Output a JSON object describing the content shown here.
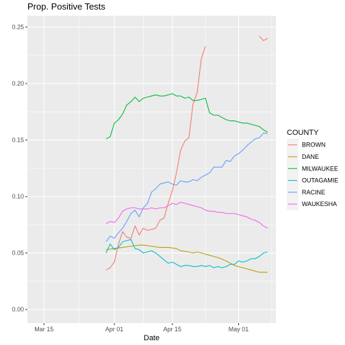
{
  "chart_data": {
    "type": "line",
    "title": "Prop. Positive Tests",
    "xlabel": "Date",
    "ylabel": "",
    "x_axis": {
      "type": "date",
      "range": [
        "2020-03-11",
        "2020-05-10"
      ],
      "ticks": [
        {
          "date": "2020-03-15",
          "label": "Mar 15"
        },
        {
          "date": "2020-04-01",
          "label": "Apr 01"
        },
        {
          "date": "2020-04-15",
          "label": "Apr 15"
        },
        {
          "date": "2020-05-01",
          "label": "May 01"
        }
      ]
    },
    "y_axis": {
      "range": [
        -0.012,
        0.26
      ],
      "ticks": [
        {
          "value": 0.0,
          "label": "0.00"
        },
        {
          "value": 0.05,
          "label": "0.05"
        },
        {
          "value": 0.1,
          "label": "0.10"
        },
        {
          "value": 0.15,
          "label": "0.15"
        },
        {
          "value": 0.2,
          "label": "0.20"
        },
        {
          "value": 0.25,
          "label": "0.25"
        }
      ]
    },
    "grid": true,
    "legend": {
      "title": "COUNTY",
      "position": "right"
    },
    "series": [
      {
        "name": "BROWN",
        "color": "#F8766D",
        "points": [
          [
            "2020-03-30",
            0.035
          ],
          [
            "2020-03-31",
            0.037
          ],
          [
            "2020-04-01",
            0.042
          ],
          [
            "2020-04-02",
            0.058
          ],
          [
            "2020-04-03",
            0.069
          ],
          [
            "2020-04-04",
            0.064
          ],
          [
            "2020-04-05",
            0.063
          ],
          [
            "2020-04-06",
            0.074
          ],
          [
            "2020-04-07",
            0.066
          ],
          [
            "2020-04-08",
            0.072
          ],
          [
            "2020-04-09",
            0.07
          ],
          [
            "2020-04-10",
            0.071
          ],
          [
            "2020-04-11",
            0.072
          ],
          [
            "2020-04-12",
            0.079
          ],
          [
            "2020-04-13",
            0.081
          ],
          [
            "2020-04-14",
            0.094
          ],
          [
            "2020-04-15",
            0.105
          ],
          [
            "2020-04-16",
            0.121
          ],
          [
            "2020-04-17",
            0.141
          ],
          [
            "2020-04-18",
            0.149
          ],
          [
            "2020-04-19",
            0.152
          ],
          [
            "2020-04-20",
            0.182
          ],
          [
            "2020-04-21",
            0.192
          ],
          [
            "2020-04-22",
            0.222
          ],
          [
            "2020-04-23",
            0.233
          ],
          null,
          [
            "2020-05-06",
            0.242
          ],
          [
            "2020-05-07",
            0.238
          ],
          [
            "2020-05-08",
            0.24
          ]
        ]
      },
      {
        "name": "DANE",
        "color": "#B79F00",
        "points": [
          [
            "2020-03-30",
            0.053
          ],
          [
            "2020-04-01",
            0.054
          ],
          [
            "2020-04-03",
            0.055
          ],
          [
            "2020-04-05",
            0.056
          ],
          [
            "2020-04-07",
            0.057
          ],
          [
            "2020-04-08",
            0.057
          ],
          [
            "2020-04-10",
            0.056
          ],
          [
            "2020-04-12",
            0.055
          ],
          [
            "2020-04-14",
            0.055
          ],
          [
            "2020-04-16",
            0.054
          ],
          [
            "2020-04-17",
            0.052
          ],
          [
            "2020-04-19",
            0.051
          ],
          [
            "2020-04-20",
            0.05
          ],
          [
            "2020-04-21",
            0.051
          ],
          [
            "2020-04-22",
            0.05
          ],
          [
            "2020-04-24",
            0.048
          ],
          [
            "2020-04-26",
            0.046
          ],
          [
            "2020-04-28",
            0.043
          ],
          [
            "2020-04-30",
            0.039
          ],
          [
            "2020-05-02",
            0.037
          ],
          [
            "2020-05-04",
            0.035
          ],
          [
            "2020-05-06",
            0.033
          ],
          [
            "2020-05-08",
            0.033
          ]
        ]
      },
      {
        "name": "MILWAUKEE",
        "color": "#00BA38",
        "points": [
          [
            "2020-03-30",
            0.151
          ],
          [
            "2020-03-31",
            0.153
          ],
          [
            "2020-04-01",
            0.165
          ],
          [
            "2020-04-02",
            0.168
          ],
          [
            "2020-04-03",
            0.173
          ],
          [
            "2020-04-04",
            0.181
          ],
          [
            "2020-04-05",
            0.184
          ],
          [
            "2020-04-06",
            0.188
          ],
          [
            "2020-04-07",
            0.184
          ],
          [
            "2020-04-08",
            0.187
          ],
          [
            "2020-04-09",
            0.188
          ],
          [
            "2020-04-10",
            0.189
          ],
          [
            "2020-04-11",
            0.19
          ],
          [
            "2020-04-12",
            0.189
          ],
          [
            "2020-04-13",
            0.189
          ],
          [
            "2020-04-14",
            0.19
          ],
          [
            "2020-04-15",
            0.191
          ],
          [
            "2020-04-16",
            0.189
          ],
          [
            "2020-04-17",
            0.189
          ],
          [
            "2020-04-18",
            0.187
          ],
          [
            "2020-04-19",
            0.188
          ],
          [
            "2020-04-20",
            0.185
          ],
          [
            "2020-04-21",
            0.185
          ],
          [
            "2020-04-22",
            0.186
          ],
          [
            "2020-04-23",
            0.187
          ],
          [
            "2020-04-24",
            0.174
          ],
          [
            "2020-04-25",
            0.172
          ],
          [
            "2020-04-26",
            0.172
          ],
          [
            "2020-04-27",
            0.17
          ],
          [
            "2020-04-28",
            0.168
          ],
          [
            "2020-04-29",
            0.167
          ],
          [
            "2020-04-30",
            0.167
          ],
          [
            "2020-05-01",
            0.166
          ],
          [
            "2020-05-02",
            0.165
          ],
          [
            "2020-05-03",
            0.165
          ],
          [
            "2020-05-04",
            0.164
          ],
          [
            "2020-05-05",
            0.163
          ],
          [
            "2020-05-06",
            0.162
          ],
          [
            "2020-05-07",
            0.159
          ],
          [
            "2020-05-08",
            0.157
          ]
        ]
      },
      {
        "name": "OUTAGAMIE",
        "color": "#00BFC4",
        "points": [
          [
            "2020-03-30",
            0.05
          ],
          [
            "2020-03-31",
            0.058
          ],
          [
            "2020-04-01",
            0.053
          ],
          [
            "2020-04-02",
            0.055
          ],
          [
            "2020-04-03",
            0.06
          ],
          [
            "2020-04-04",
            0.061
          ],
          [
            "2020-04-05",
            0.062
          ],
          [
            "2020-04-06",
            0.054
          ],
          [
            "2020-04-07",
            0.053
          ],
          [
            "2020-04-08",
            0.05
          ],
          [
            "2020-04-09",
            0.051
          ],
          [
            "2020-04-10",
            0.052
          ],
          [
            "2020-04-11",
            0.05
          ],
          [
            "2020-04-12",
            0.047
          ],
          [
            "2020-04-13",
            0.044
          ],
          [
            "2020-04-14",
            0.041
          ],
          [
            "2020-04-15",
            0.042
          ],
          [
            "2020-04-16",
            0.04
          ],
          [
            "2020-04-17",
            0.038
          ],
          [
            "2020-04-18",
            0.039
          ],
          [
            "2020-04-19",
            0.039
          ],
          [
            "2020-04-20",
            0.038
          ],
          [
            "2020-04-21",
            0.038
          ],
          [
            "2020-04-22",
            0.039
          ],
          [
            "2020-04-23",
            0.038
          ],
          [
            "2020-04-24",
            0.039
          ],
          [
            "2020-04-25",
            0.037
          ],
          [
            "2020-04-26",
            0.038
          ],
          [
            "2020-04-27",
            0.037
          ],
          [
            "2020-04-28",
            0.038
          ],
          [
            "2020-04-29",
            0.04
          ],
          [
            "2020-04-30",
            0.04
          ],
          [
            "2020-05-01",
            0.043
          ],
          [
            "2020-05-02",
            0.042
          ],
          [
            "2020-05-03",
            0.043
          ],
          [
            "2020-05-04",
            0.045
          ],
          [
            "2020-05-05",
            0.045
          ],
          [
            "2020-05-06",
            0.047
          ],
          [
            "2020-05-07",
            0.05
          ],
          [
            "2020-05-08",
            0.051
          ]
        ]
      },
      {
        "name": "RACINE",
        "color": "#619CFF",
        "points": [
          [
            "2020-03-30",
            0.06
          ],
          [
            "2020-03-31",
            0.065
          ],
          [
            "2020-04-01",
            0.063
          ],
          [
            "2020-04-02",
            0.068
          ],
          [
            "2020-04-03",
            0.072
          ],
          [
            "2020-04-04",
            0.078
          ],
          [
            "2020-04-05",
            0.085
          ],
          [
            "2020-04-06",
            0.088
          ],
          [
            "2020-04-07",
            0.082
          ],
          [
            "2020-04-08",
            0.09
          ],
          [
            "2020-04-09",
            0.094
          ],
          [
            "2020-04-10",
            0.104
          ],
          [
            "2020-04-11",
            0.107
          ],
          [
            "2020-04-12",
            0.111
          ],
          [
            "2020-04-13",
            0.112
          ],
          [
            "2020-04-14",
            0.113
          ],
          [
            "2020-04-15",
            0.111
          ],
          [
            "2020-04-16",
            0.11
          ],
          [
            "2020-04-17",
            0.114
          ],
          [
            "2020-04-18",
            0.113
          ],
          [
            "2020-04-19",
            0.113
          ],
          [
            "2020-04-20",
            0.115
          ],
          [
            "2020-04-21",
            0.114
          ],
          [
            "2020-04-22",
            0.117
          ],
          [
            "2020-04-23",
            0.119
          ],
          [
            "2020-04-24",
            0.121
          ],
          [
            "2020-04-25",
            0.126
          ],
          [
            "2020-04-26",
            0.126
          ],
          [
            "2020-04-27",
            0.126
          ],
          [
            "2020-04-28",
            0.132
          ],
          [
            "2020-04-29",
            0.131
          ],
          [
            "2020-04-30",
            0.136
          ],
          [
            "2020-05-01",
            0.138
          ],
          [
            "2020-05-02",
            0.141
          ],
          [
            "2020-05-03",
            0.145
          ],
          [
            "2020-05-04",
            0.148
          ],
          [
            "2020-05-05",
            0.151
          ],
          [
            "2020-05-06",
            0.152
          ],
          [
            "2020-05-07",
            0.156
          ],
          [
            "2020-05-08",
            0.156
          ]
        ]
      },
      {
        "name": "WAUKESHA",
        "color": "#F564E3",
        "points": [
          [
            "2020-03-30",
            0.076
          ],
          [
            "2020-03-31",
            0.078
          ],
          [
            "2020-04-01",
            0.077
          ],
          [
            "2020-04-02",
            0.081
          ],
          [
            "2020-04-03",
            0.087
          ],
          [
            "2020-04-04",
            0.089
          ],
          [
            "2020-04-05",
            0.09
          ],
          [
            "2020-04-06",
            0.09
          ],
          [
            "2020-04-07",
            0.089
          ],
          [
            "2020-04-08",
            0.089
          ],
          [
            "2020-04-09",
            0.089
          ],
          [
            "2020-04-10",
            0.09
          ],
          [
            "2020-04-11",
            0.089
          ],
          [
            "2020-04-12",
            0.09
          ],
          [
            "2020-04-13",
            0.09
          ],
          [
            "2020-04-14",
            0.092
          ],
          [
            "2020-04-15",
            0.094
          ],
          [
            "2020-04-16",
            0.093
          ],
          [
            "2020-04-17",
            0.095
          ],
          [
            "2020-04-18",
            0.094
          ],
          [
            "2020-04-19",
            0.093
          ],
          [
            "2020-04-20",
            0.092
          ],
          [
            "2020-04-21",
            0.091
          ],
          [
            "2020-04-22",
            0.09
          ],
          [
            "2020-04-23",
            0.088
          ],
          [
            "2020-04-24",
            0.087
          ],
          [
            "2020-04-25",
            0.087
          ],
          [
            "2020-04-26",
            0.086
          ],
          [
            "2020-04-27",
            0.086
          ],
          [
            "2020-04-28",
            0.085
          ],
          [
            "2020-04-29",
            0.085
          ],
          [
            "2020-04-30",
            0.085
          ],
          [
            "2020-05-01",
            0.084
          ],
          [
            "2020-05-02",
            0.083
          ],
          [
            "2020-05-03",
            0.082
          ],
          [
            "2020-05-04",
            0.08
          ],
          [
            "2020-05-05",
            0.079
          ],
          [
            "2020-05-06",
            0.077
          ],
          [
            "2020-05-07",
            0.074
          ],
          [
            "2020-05-08",
            0.072
          ]
        ]
      }
    ]
  }
}
